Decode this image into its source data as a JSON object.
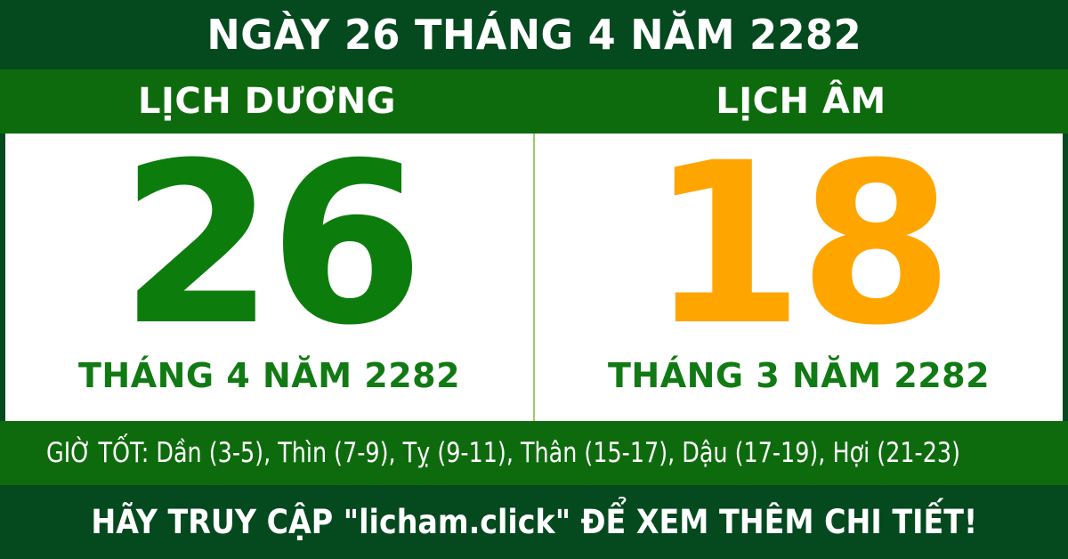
{
  "colors": {
    "dark_green": "#05491f",
    "medium_green": "#0e6b0d",
    "number_green": "#0c7d0c",
    "caption_green": "#117a14",
    "orange": "#ffa500",
    "divider_green": "#9ccc65"
  },
  "top_banner": {
    "title": "NGÀY 26 THÁNG 4 NĂM 2282"
  },
  "calendar_headers": {
    "solar": "LỊCH DƯƠNG",
    "lunar": "LỊCH ÂM"
  },
  "solar": {
    "day": "26",
    "caption": "THÁNG 4 NĂM 2282"
  },
  "lunar": {
    "day": "18",
    "caption": "THÁNG 3 NĂM 2282"
  },
  "good_hours": {
    "text": "GIỜ TỐT: Dần (3-5), Thìn (7-9), Tỵ (9-11), Thân (15-17), Dậu (17-19), Hợi (21-23)"
  },
  "footer": {
    "text": "HÃY TRUY CẬP \"licham.click\" ĐỂ XEM THÊM CHI TIẾT!"
  }
}
